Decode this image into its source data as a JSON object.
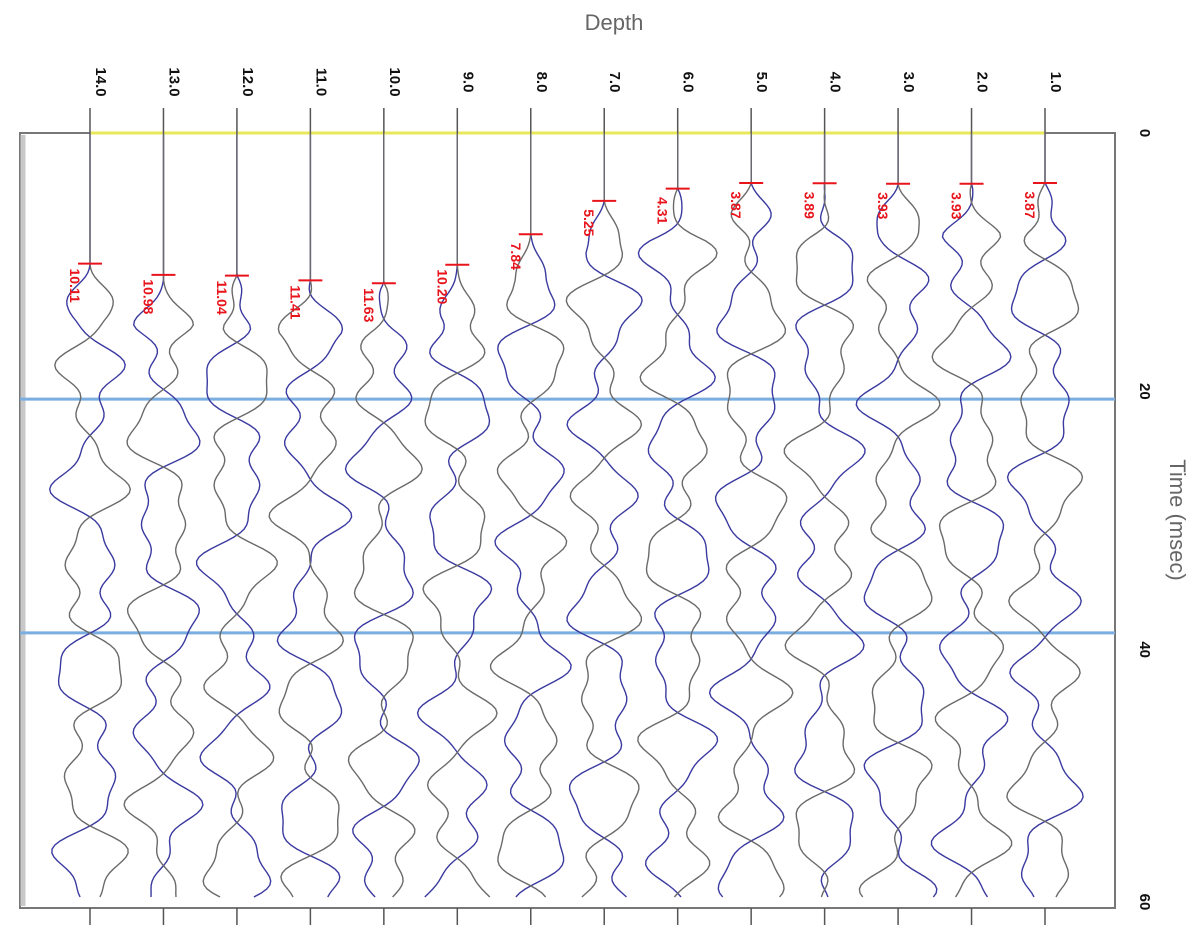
{
  "chart_data": {
    "type": "line",
    "title": "",
    "depth_axis_label": "Depth",
    "time_axis_label": "Time (msec)",
    "time_range": [
      0,
      60
    ],
    "time_ticks": [
      {
        "value": 0,
        "label": "0"
      },
      {
        "value": 20,
        "label": "20"
      },
      {
        "value": 40,
        "label": "40"
      },
      {
        "value": 60,
        "label": "60"
      }
    ],
    "depth_ticks": [
      "1.0",
      "2.0",
      "3.0",
      "4.0",
      "5.0",
      "6.0",
      "7.0",
      "8.0",
      "9.0",
      "10.0",
      "11.0",
      "12.0",
      "13.0",
      "14.0"
    ],
    "reference_lines": [
      {
        "time": 0,
        "color": "#e8e85a"
      },
      {
        "time": 20.6,
        "color": "#7aaee0"
      },
      {
        "time": 38.7,
        "color": "#7aaee0"
      }
    ],
    "picks": [
      {
        "depth": "1.0",
        "time": 3.87,
        "label": "3.87"
      },
      {
        "depth": "2.0",
        "time": 3.93,
        "label": "3.93"
      },
      {
        "depth": "3.0",
        "time": 3.93,
        "label": "3.93"
      },
      {
        "depth": "4.0",
        "time": 3.89,
        "label": "3.89"
      },
      {
        "depth": "5.0",
        "time": 3.87,
        "label": "3.87"
      },
      {
        "depth": "6.0",
        "time": 4.31,
        "label": "4.31"
      },
      {
        "depth": "7.0",
        "time": 5.25,
        "label": "5.25"
      },
      {
        "depth": "8.0",
        "time": 7.84,
        "label": "7.84"
      },
      {
        "depth": "9.0",
        "time": 10.2,
        "label": "10.20"
      },
      {
        "depth": "10.0",
        "time": 11.63,
        "label": "11.63"
      },
      {
        "depth": "11.0",
        "time": 11.41,
        "label": "11.41"
      },
      {
        "depth": "12.0",
        "time": 11.04,
        "label": "11.04"
      },
      {
        "depth": "13.0",
        "time": 10.98,
        "label": "10.98"
      },
      {
        "depth": "14.0",
        "time": 10.11,
        "label": "10.11"
      }
    ],
    "trace_colors": {
      "primary": "#3a3aa0",
      "secondary": "#6a6a6a"
    }
  }
}
